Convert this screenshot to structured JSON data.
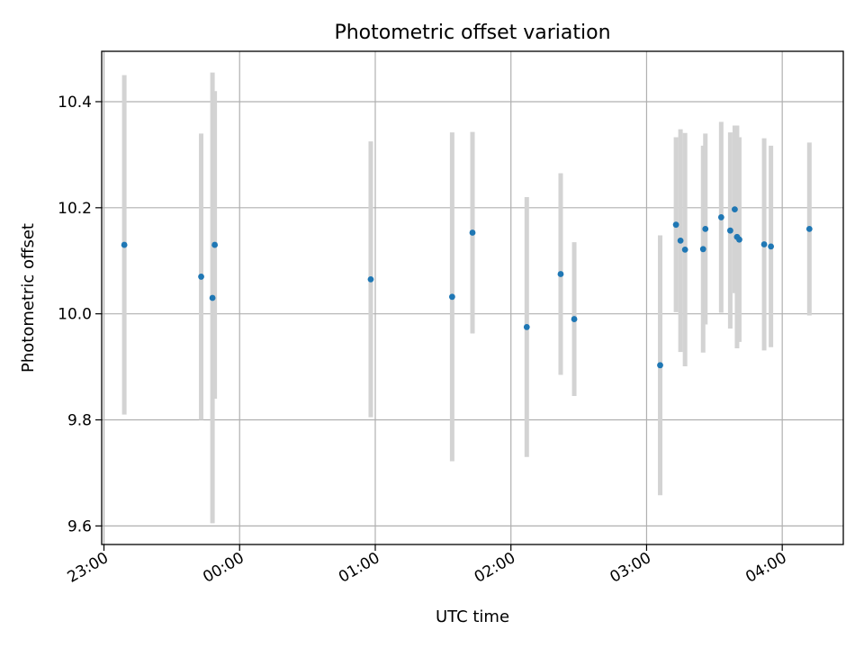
{
  "chart_data": {
    "type": "scatter",
    "title": "Photometric offset variation",
    "xlabel": "UTC time",
    "ylabel": "Photometric offset",
    "x_ticks": [
      "23:00",
      "00:00",
      "01:00",
      "02:00",
      "03:00",
      "04:00"
    ],
    "y_ticks": [
      "9.6",
      "9.8",
      "10.0",
      "10.2",
      "10.4"
    ],
    "y_tick_values": [
      9.6,
      9.8,
      10.0,
      10.2,
      10.4
    ],
    "xlim": [
      "22:59",
      "04:27"
    ],
    "ylim": [
      9.565,
      10.495
    ],
    "grid": true,
    "marker_color": "#1f77b4",
    "errorbar_color": "#d3d3d3",
    "points": [
      {
        "t": "23:09",
        "y": 10.13,
        "err": 0.32
      },
      {
        "t": "23:43",
        "y": 10.07,
        "err": 0.27
      },
      {
        "t": "23:48",
        "y": 10.03,
        "err": 0.425
      },
      {
        "t": "23:49",
        "y": 10.13,
        "err": 0.29
      },
      {
        "t": "00:58",
        "y": 10.065,
        "err": 0.26
      },
      {
        "t": "01:34",
        "y": 10.032,
        "err": 0.31
      },
      {
        "t": "01:43",
        "y": 10.153,
        "err": 0.19
      },
      {
        "t": "02:07",
        "y": 9.975,
        "err": 0.245
      },
      {
        "t": "02:22",
        "y": 10.075,
        "err": 0.19
      },
      {
        "t": "02:28",
        "y": 9.99,
        "err": 0.145
      },
      {
        "t": "03:06",
        "y": 9.903,
        "err": 0.245
      },
      {
        "t": "03:13",
        "y": 10.168,
        "err": 0.165
      },
      {
        "t": "03:15",
        "y": 10.138,
        "err": 0.21
      },
      {
        "t": "03:17",
        "y": 10.121,
        "err": 0.22
      },
      {
        "t": "03:25",
        "y": 10.122,
        "err": 0.195
      },
      {
        "t": "03:26",
        "y": 10.16,
        "err": 0.18
      },
      {
        "t": "03:33",
        "y": 10.182,
        "err": 0.18
      },
      {
        "t": "03:37",
        "y": 10.157,
        "err": 0.185
      },
      {
        "t": "03:39",
        "y": 10.197,
        "err": 0.158
      },
      {
        "t": "03:40",
        "y": 10.145,
        "err": 0.21
      },
      {
        "t": "03:41",
        "y": 10.14,
        "err": 0.193
      },
      {
        "t": "03:52",
        "y": 10.131,
        "err": 0.2
      },
      {
        "t": "03:55",
        "y": 10.127,
        "err": 0.19
      },
      {
        "t": "04:12",
        "y": 10.16,
        "err": 0.163
      }
    ]
  }
}
